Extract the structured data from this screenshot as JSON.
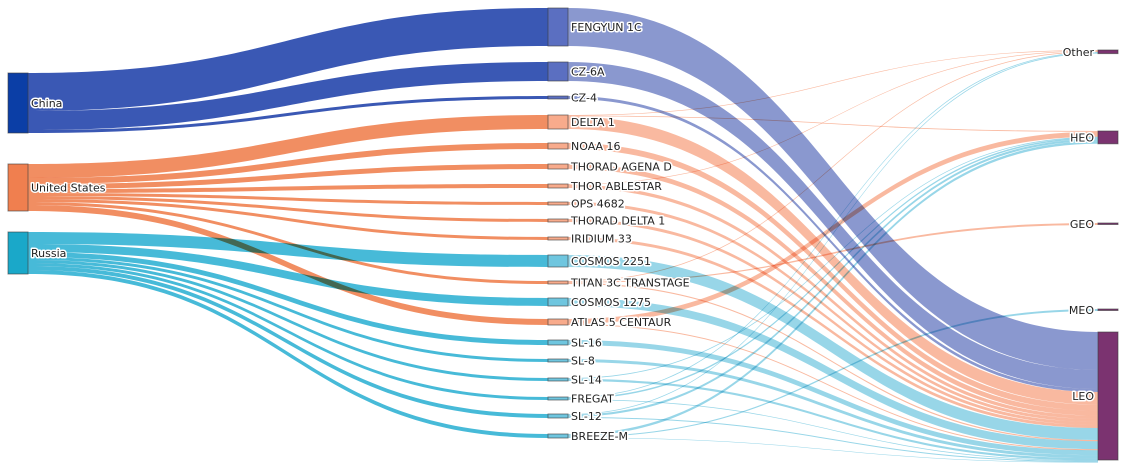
{
  "colors": {
    "China": {
      "node": "#0b3ea6",
      "link": "#2f4fb0",
      "mid_node": "#5b6fc1",
      "mid_link": "#7d8dca"
    },
    "United States": {
      "node": "#f07f4f",
      "link": "#f0885a",
      "mid_node": "#f8ab8c",
      "mid_link": "#f8b196"
    },
    "Russia": {
      "node": "#1aa8c9",
      "link": "#3db6d6",
      "mid_node": "#6fc6df",
      "mid_link": "#8dd1e5"
    },
    "orbit": "#7b3370"
  },
  "sankey": {
    "countries": [
      "China",
      "United States",
      "Russia"
    ],
    "objects": [
      {
        "name": "FENGYUN 1C",
        "country": "China"
      },
      {
        "name": "CZ-6A",
        "country": "China"
      },
      {
        "name": "CZ-4",
        "country": "China"
      },
      {
        "name": "DELTA 1",
        "country": "United States"
      },
      {
        "name": "NOAA 16",
        "country": "United States"
      },
      {
        "name": "THORAD AGENA D",
        "country": "United States"
      },
      {
        "name": "THOR ABLESTAR",
        "country": "United States"
      },
      {
        "name": "OPS 4682",
        "country": "United States"
      },
      {
        "name": "THORAD DELTA 1",
        "country": "United States"
      },
      {
        "name": "IRIDIUM 33",
        "country": "United States"
      },
      {
        "name": "COSMOS 2251",
        "country": "Russia"
      },
      {
        "name": "TITAN 3C TRANSTAGE",
        "country": "United States"
      },
      {
        "name": "COSMOS 1275",
        "country": "Russia"
      },
      {
        "name": "ATLAS 5 CENTAUR",
        "country": "United States"
      },
      {
        "name": "SL-16",
        "country": "Russia"
      },
      {
        "name": "SL-8",
        "country": "Russia"
      },
      {
        "name": "SL-14",
        "country": "Russia"
      },
      {
        "name": "FREGAT",
        "country": "Russia"
      },
      {
        "name": "SL-12",
        "country": "Russia"
      },
      {
        "name": "BREEZE-M",
        "country": "Russia"
      }
    ],
    "orbits": [
      "Other",
      "HEO",
      "GEO",
      "MEO",
      "LEO"
    ],
    "flows": [
      {
        "object": "FENGYUN 1C",
        "orbit": "LEO",
        "value": 38
      },
      {
        "object": "CZ-6A",
        "orbit": "LEO",
        "value": 19
      },
      {
        "object": "CZ-4",
        "orbit": "LEO",
        "value": 3
      },
      {
        "object": "DELTA 1",
        "orbit": "Other",
        "value": 0.6
      },
      {
        "object": "DELTA 1",
        "orbit": "HEO",
        "value": 0.8
      },
      {
        "object": "DELTA 1",
        "orbit": "LEO",
        "value": 12.6
      },
      {
        "object": "NOAA 16",
        "orbit": "LEO",
        "value": 6
      },
      {
        "object": "THORAD AGENA D",
        "orbit": "LEO",
        "value": 5
      },
      {
        "object": "THOR ABLESTAR",
        "orbit": "Other",
        "value": 0.6
      },
      {
        "object": "THOR ABLESTAR",
        "orbit": "LEO",
        "value": 3.4
      },
      {
        "object": "OPS 4682",
        "orbit": "LEO",
        "value": 3
      },
      {
        "object": "THORAD DELTA 1",
        "orbit": "LEO",
        "value": 3
      },
      {
        "object": "IRIDIUM 33",
        "orbit": "LEO",
        "value": 3
      },
      {
        "object": "COSMOS 2251",
        "orbit": "LEO",
        "value": 12
      },
      {
        "object": "TITAN 3C TRANSTAGE",
        "orbit": "Other",
        "value": 0.8
      },
      {
        "object": "TITAN 3C TRANSTAGE",
        "orbit": "GEO",
        "value": 1
      },
      {
        "object": "TITAN 3C TRANSTAGE",
        "orbit": "LEO",
        "value": 1.2
      },
      {
        "object": "COSMOS 1275",
        "orbit": "LEO",
        "value": 8
      },
      {
        "object": "ATLAS 5 CENTAUR",
        "orbit": "HEO",
        "value": 5
      },
      {
        "object": "ATLAS 5 CENTAUR",
        "orbit": "LEO",
        "value": 1
      },
      {
        "object": "SL-16",
        "orbit": "LEO",
        "value": 5
      },
      {
        "object": "SL-8",
        "orbit": "LEO",
        "value": 3
      },
      {
        "object": "SL-14",
        "orbit": "HEO",
        "value": 0.8
      },
      {
        "object": "SL-14",
        "orbit": "LEO",
        "value": 2.2
      },
      {
        "object": "FREGAT",
        "orbit": "Other",
        "value": 0.8
      },
      {
        "object": "FREGAT",
        "orbit": "HEO",
        "value": 1.5
      },
      {
        "object": "FREGAT",
        "orbit": "LEO",
        "value": 0.7
      },
      {
        "object": "SL-12",
        "orbit": "Other",
        "value": 0.8
      },
      {
        "object": "SL-12",
        "orbit": "HEO",
        "value": 2.2
      },
      {
        "object": "SL-12",
        "orbit": "LEO",
        "value": 1
      },
      {
        "object": "BREEZE-M",
        "orbit": "HEO",
        "value": 2.5
      },
      {
        "object": "BREEZE-M",
        "orbit": "MEO",
        "value": 1
      },
      {
        "object": "BREEZE-M",
        "orbit": "LEO",
        "value": 0.5
      }
    ]
  }
}
